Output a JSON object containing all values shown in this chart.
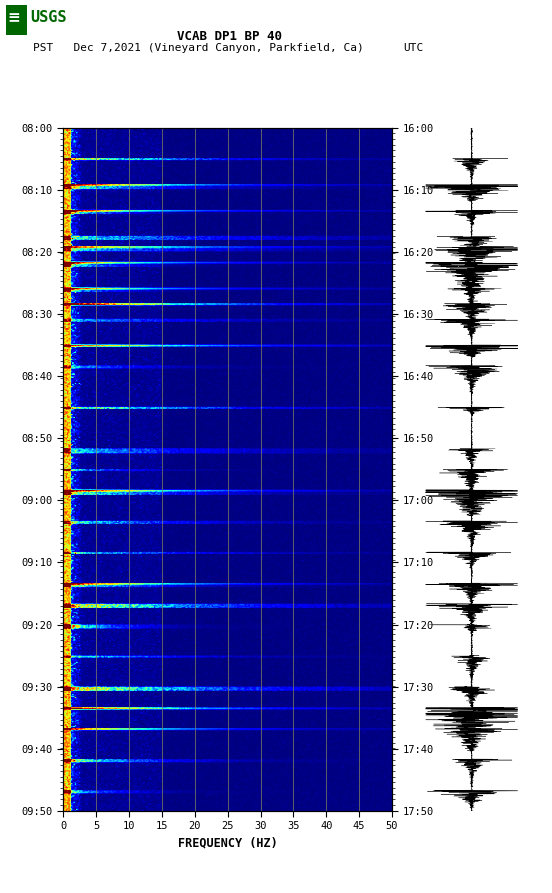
{
  "title_line1": "VCAB DP1 BP 40",
  "title_line2_left": "PST   Dec 7,2021 (Vineyard Canyon, Parkfield, Ca)",
  "title_line2_right": "UTC",
  "xlabel": "FREQUENCY (HZ)",
  "freq_min": 0,
  "freq_max": 50,
  "pst_ticks": [
    "08:00",
    "08:10",
    "08:20",
    "08:30",
    "08:40",
    "08:50",
    "09:00",
    "09:10",
    "09:20",
    "09:30",
    "09:40",
    "09:50"
  ],
  "utc_ticks": [
    "16:00",
    "16:10",
    "16:20",
    "16:30",
    "16:40",
    "16:50",
    "17:00",
    "17:10",
    "17:20",
    "17:30",
    "17:40",
    "17:50"
  ],
  "freq_ticks": [
    0,
    5,
    10,
    15,
    20,
    25,
    30,
    35,
    40,
    45,
    50
  ],
  "background_color": "#ffffff",
  "spectrogram_bg": "#00008B",
  "vline_color": "#808060",
  "vline_positions": [
    5,
    10,
    15,
    20,
    25,
    30,
    35,
    40,
    45
  ],
  "n_time": 660,
  "n_freq": 250,
  "burst_times": [
    30,
    55,
    80,
    105,
    115,
    130,
    155,
    170,
    185,
    210,
    230,
    270,
    310,
    330,
    350,
    380,
    410,
    440,
    460,
    480,
    510,
    540,
    560,
    580,
    610,
    640
  ],
  "harmonic_times": [
    55,
    80,
    115,
    130,
    155,
    170,
    210,
    350,
    440,
    560,
    580
  ],
  "low_freq_col_cutoff": 15,
  "mid_freq_col_cutoff": 75,
  "usgs_color": "#006600"
}
